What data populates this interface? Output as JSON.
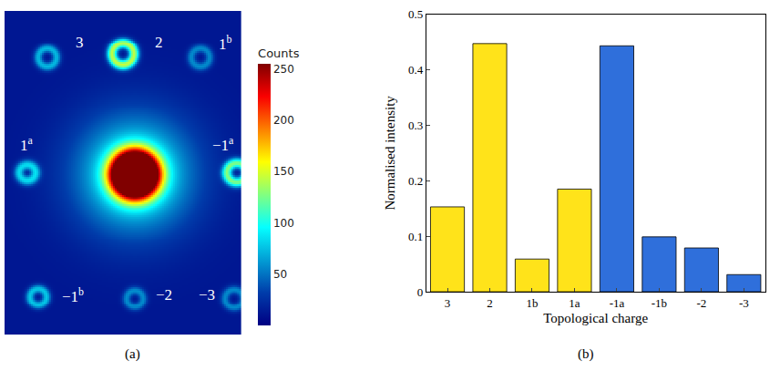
{
  "chart_data": [
    {
      "type": "heatmap",
      "label": "(a)",
      "colorbar": {
        "title": "Counts",
        "zlim": [
          0,
          255
        ],
        "ticks": [
          50,
          100,
          150,
          200,
          250
        ],
        "color": "jet"
      },
      "xlim": [
        0,
        260
      ],
      "ylim": [
        360,
        0
      ],
      "tick_labels": false,
      "background": 12,
      "spots": [
        {
          "text": "3",
          "x": 47,
          "y": 52,
          "radius": 10,
          "width": 3.5,
          "peak": 60,
          "label_x": 83,
          "label_y": 35
        },
        {
          "text": "2",
          "x": 130,
          "y": 48,
          "radius": 12,
          "width": 4,
          "peak": 130,
          "label_x": 170,
          "label_y": 35
        },
        {
          "text": "1",
          "sup": "b",
          "x": 215,
          "y": 52,
          "radius": 10,
          "width": 3.5,
          "peak": 45,
          "label_x": 243,
          "label_y": 35
        },
        {
          "text": "1",
          "sup": "a",
          "x": 25,
          "y": 180,
          "radius": 9,
          "width": 4,
          "peak": 70,
          "label_x": 25,
          "label_y": 148
        },
        {
          "x": 143,
          "y": 182,
          "radius": 0,
          "width": 16,
          "peak": 600
        },
        {
          "x": 143,
          "y": 182,
          "radius": 0,
          "width": 45,
          "peak": 90
        },
        {
          "text": "−1",
          "sup": "a",
          "x": 255,
          "y": 180,
          "radius": 11,
          "width": 4,
          "peak": 110,
          "label_x": 240,
          "label_y": 148
        },
        {
          "text": "−1",
          "sup": "b",
          "x": 37,
          "y": 318,
          "radius": 9,
          "width": 3.5,
          "peak": 65,
          "label_x": 75,
          "label_y": 316
        },
        {
          "text": "−2",
          "x": 143,
          "y": 320,
          "radius": 9,
          "width": 3.5,
          "peak": 45,
          "label_x": 175,
          "label_y": 316
        },
        {
          "text": "−3",
          "x": 252,
          "y": 320,
          "radius": 10,
          "width": 3.5,
          "peak": 45,
          "label_x": 222,
          "label_y": 316
        }
      ]
    },
    {
      "type": "bar",
      "label": "(b)",
      "x_label": "Topological charge",
      "y_label": "Normalised intensity",
      "categories": [
        "3",
        "2",
        "1b",
        "1a",
        "-1a",
        "-1b",
        "-2",
        "-3"
      ],
      "values": [
        0.153,
        0.447,
        0.059,
        0.185,
        0.443,
        0.099,
        0.079,
        0.031
      ],
      "colors": [
        "#FFE31A",
        "#FFE31A",
        "#FFE31A",
        "#FFE31A",
        "#2F6FDB",
        "#2F6FDB",
        "#2F6FDB",
        "#2F6FDB"
      ],
      "ylim": [
        0,
        0.5
      ],
      "yticks": [
        0,
        0.1,
        0.2,
        0.3,
        0.4,
        0.5
      ],
      "grid": false
    }
  ]
}
